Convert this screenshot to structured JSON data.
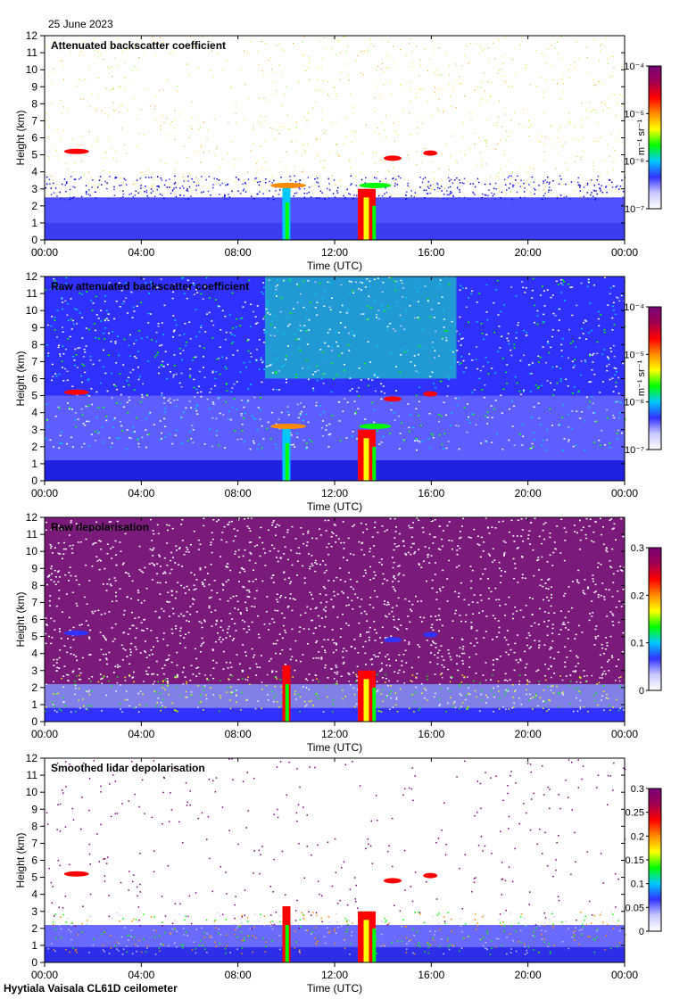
{
  "date": "25 June 2023",
  "footer": "Hyytiala Vaisala CL61D ceilometer",
  "colors": {
    "jet": [
      "#ffffff",
      "#c8c8ff",
      "#3232ff",
      "#0000cc",
      "#00c8ff",
      "#00ff00",
      "#ffff00",
      "#ff8c00",
      "#ff0000",
      "#a00050",
      "#780078"
    ]
  },
  "chart_data": [
    {
      "type": "heatmap",
      "title": "Attenuated backscatter coefficient",
      "xlabel": "Time (UTC)",
      "ylabel": "Height (km)",
      "xticks": [
        "00:00",
        "04:00",
        "08:00",
        "12:00",
        "16:00",
        "20:00",
        "00:00"
      ],
      "yticks": [
        "0",
        "1",
        "2",
        "3",
        "4",
        "5",
        "6",
        "7",
        "8",
        "9",
        "10",
        "11",
        "12"
      ],
      "ylim": [
        0,
        12
      ],
      "colorbar": {
        "scale": "log",
        "ticks": [
          "10⁻⁷",
          "10⁻⁶",
          "10⁻⁵",
          "10⁻⁴"
        ],
        "unit": "m⁻¹ sr⁻¹"
      }
    },
    {
      "type": "heatmap",
      "title": "Raw attenuated backscatter coefficient",
      "xlabel": "Time (UTC)",
      "ylabel": "Height (km)",
      "xticks": [
        "00:00",
        "04:00",
        "08:00",
        "12:00",
        "16:00",
        "20:00",
        "00:00"
      ],
      "yticks": [
        "0",
        "1",
        "2",
        "3",
        "4",
        "5",
        "6",
        "7",
        "8",
        "9",
        "10",
        "11",
        "12"
      ],
      "ylim": [
        0,
        12
      ],
      "colorbar": {
        "scale": "log",
        "ticks": [
          "10⁻⁷",
          "10⁻⁶",
          "10⁻⁵",
          "10⁻⁴"
        ],
        "unit": "m⁻¹ sr⁻¹"
      }
    },
    {
      "type": "heatmap",
      "title": "Raw depolarisation",
      "xlabel": "Time (UTC)",
      "ylabel": "Height (km)",
      "xticks": [
        "00:00",
        "04:00",
        "08:00",
        "12:00",
        "16:00",
        "20:00",
        "00:00"
      ],
      "yticks": [
        "0",
        "1",
        "2",
        "3",
        "4",
        "5",
        "6",
        "7",
        "8",
        "9",
        "10",
        "11",
        "12"
      ],
      "ylim": [
        0,
        12
      ],
      "colorbar": {
        "scale": "linear",
        "ticks": [
          "0",
          "0.1",
          "0.2",
          "0.3"
        ],
        "range": [
          0,
          0.3
        ],
        "unit": ""
      }
    },
    {
      "type": "heatmap",
      "title": "Smoothed lidar depolarisation",
      "xlabel": "Time (UTC)",
      "ylabel": "Height (km)",
      "xticks": [
        "00:00",
        "04:00",
        "08:00",
        "12:00",
        "16:00",
        "20:00",
        "00:00"
      ],
      "yticks": [
        "0",
        "1",
        "2",
        "3",
        "4",
        "5",
        "6",
        "7",
        "8",
        "9",
        "10",
        "11",
        "12"
      ],
      "ylim": [
        0,
        12
      ],
      "colorbar": {
        "scale": "linear",
        "ticks": [
          "0",
          "0.05",
          "0.1",
          "0.15",
          "0.2",
          "0.25",
          "0.3"
        ],
        "range": [
          0,
          0.3
        ],
        "unit": ""
      }
    }
  ]
}
